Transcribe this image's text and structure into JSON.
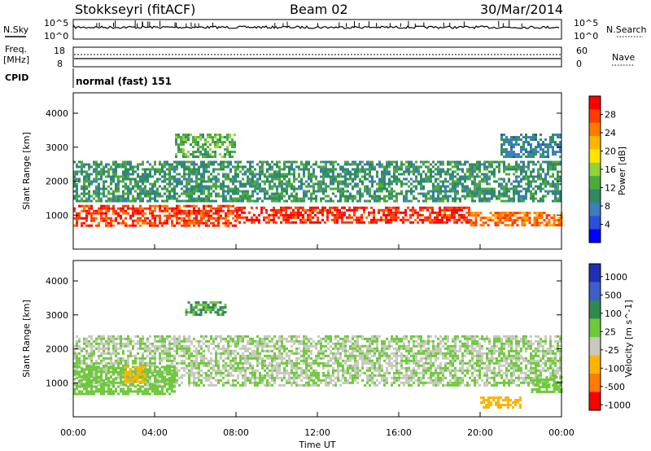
{
  "header": {
    "station": "Stokkseyri (fitACF)",
    "beam": "Beam 02",
    "date": "30/Mar/2014"
  },
  "strips": {
    "nsky_label": "N.Sky",
    "nsky_ticks": [
      "10^5",
      "10^0"
    ],
    "nsearch_label": "N.Search",
    "nsearch_ticks": [
      "10^5",
      "10^0"
    ],
    "freq_label": "Freq.",
    "freq_unit": "[MHz]",
    "freq_ticks": [
      "18",
      "8"
    ],
    "nave_label": "Nave",
    "nave_ticks": [
      "60",
      "0"
    ],
    "cpid_label": "CPID",
    "cpid_value": "normal (fast) 151"
  },
  "colors": {
    "power": [
      "#0000ff",
      "#2a4fd8",
      "#3c7dbd",
      "#2f8a64",
      "#4faa3c",
      "#8fd23c",
      "#ffe400",
      "#ffb400",
      "#ff7a00",
      "#ff3c00",
      "#ff0000"
    ],
    "velocity": [
      "#1f2fb4",
      "#3c5fc8",
      "#2f8a50",
      "#6ec83c",
      "#c8c8c0",
      "#ffb400",
      "#ff7a00",
      "#ff0000"
    ],
    "gray_lane": "#c8c8c0"
  },
  "chart_data": [
    {
      "type": "heatmap",
      "title": "",
      "xlabel": "Time UT",
      "ylabel": "Slant Range [km]",
      "x_ticks": [
        "00:00",
        "04:00",
        "08:00",
        "12:00",
        "16:00",
        "20:00",
        "00:00"
      ],
      "y_ticks": [
        "1000",
        "2000",
        "3000",
        "4000"
      ],
      "ylim": [
        0,
        4600
      ],
      "colorbar_label": "Power [dB]",
      "colorbar_ticks": [
        "4",
        "8",
        "12",
        "16",
        "20",
        "24",
        "28"
      ],
      "clim": [
        0,
        30
      ],
      "bands": [
        {
          "h0": 0.0,
          "h1": 8.0,
          "lo": 700,
          "hi": 1300,
          "value": 26
        },
        {
          "h0": 8.0,
          "h1": 19.5,
          "lo": 800,
          "hi": 1250,
          "value": 27
        },
        {
          "h0": 19.5,
          "h1": 24.0,
          "lo": 700,
          "hi": 1100,
          "value": 24
        },
        {
          "h0": 0.0,
          "h1": 24.0,
          "lo": 1400,
          "hi": 2600,
          "value": 10
        },
        {
          "h0": 5.0,
          "h1": 8.0,
          "lo": 2700,
          "hi": 3400,
          "value": 12
        },
        {
          "h0": 21.0,
          "h1": 24.0,
          "lo": 2700,
          "hi": 3400,
          "value": 8
        }
      ]
    },
    {
      "type": "heatmap",
      "title": "",
      "xlabel": "Time UT",
      "ylabel": "Slant Range [km]",
      "x_ticks": [
        "00:00",
        "04:00",
        "08:00",
        "12:00",
        "16:00",
        "20:00",
        "00:00"
      ],
      "y_ticks": [
        "1000",
        "2000",
        "3000",
        "4000"
      ],
      "ylim": [
        0,
        4600
      ],
      "colorbar_label": "Velocity [m s^-1]",
      "colorbar_ticks": [
        "1000",
        "500",
        "100",
        "25",
        "-25",
        "-100",
        "-500",
        "-1000"
      ],
      "clim": [
        -1200,
        1200
      ],
      "bands": [
        {
          "h0": 0.0,
          "h1": 24.0,
          "lo": 900,
          "hi": 2400,
          "value": 0
        },
        {
          "h0": 0.0,
          "h1": 5.0,
          "lo": 700,
          "hi": 1500,
          "value": 150
        },
        {
          "h0": 2.5,
          "h1": 3.5,
          "lo": 1000,
          "hi": 1500,
          "value": -400
        },
        {
          "h0": 5.5,
          "h1": 7.5,
          "lo": 3000,
          "hi": 3400,
          "value": 300
        },
        {
          "h0": 20.0,
          "h1": 22.0,
          "lo": 300,
          "hi": 600,
          "value": -400
        },
        {
          "h0": 22.5,
          "h1": 24.0,
          "lo": 700,
          "hi": 1200,
          "value": 120
        }
      ]
    }
  ]
}
